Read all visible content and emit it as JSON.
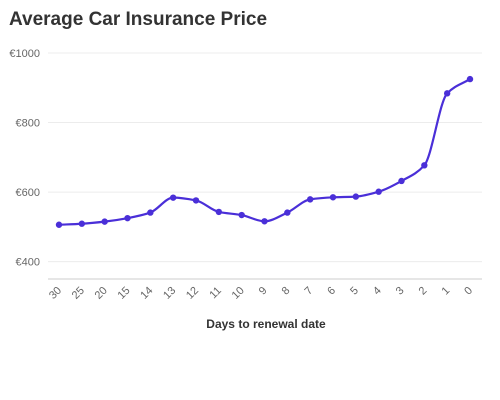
{
  "chart_data": {
    "type": "line",
    "title": "Average Car Insurance Price",
    "xlabel": "Days to renewal date",
    "ylabel": "",
    "categories": [
      "30",
      "25",
      "20",
      "15",
      "14",
      "13",
      "12",
      "11",
      "10",
      "9",
      "8",
      "7",
      "6",
      "5",
      "4",
      "3",
      "2",
      "1",
      "0"
    ],
    "series": [
      {
        "values": [
          506,
          509,
          515,
          525,
          541,
          584,
          576,
          543,
          534,
          516,
          541,
          579,
          585,
          587,
          601,
          632,
          677,
          884,
          925
        ],
        "color": "#4a2fd8"
      }
    ],
    "ylim": [
      350,
      1000
    ],
    "y_ticks": [
      {
        "value": 400,
        "label": "€400"
      },
      {
        "value": 600,
        "label": "€600"
      },
      {
        "value": 800,
        "label": "€800"
      },
      {
        "value": 1000,
        "label": "€1000"
      }
    ],
    "grid": true,
    "legend": "none"
  }
}
